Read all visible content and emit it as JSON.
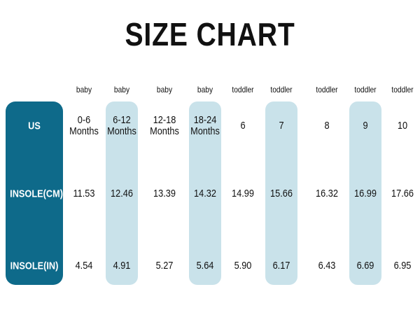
{
  "title": "SIZE CHART",
  "table": {
    "row_headers": [
      "US",
      "INSOLE(CM)",
      "INSOLE(IN)"
    ],
    "columns": [
      {
        "group": "baby",
        "us": "0-6 Months",
        "insole_cm": "11.53",
        "insole_in": "4.54"
      },
      {
        "group": "baby",
        "us": "6-12 Months",
        "insole_cm": "12.46",
        "insole_in": "4.91"
      },
      {
        "group": "baby",
        "us": "12-18 Months",
        "insole_cm": "13.39",
        "insole_in": "5.27"
      },
      {
        "group": "baby",
        "us": "18-24 Months",
        "insole_cm": "14.32",
        "insole_in": "5.64"
      },
      {
        "group": "toddler",
        "us": "6",
        "insole_cm": "14.99",
        "insole_in": "5.90"
      },
      {
        "group": "toddler",
        "us": "7",
        "insole_cm": "15.66",
        "insole_in": "6.17"
      },
      {
        "group": "toddler",
        "us": "8",
        "insole_cm": "16.32",
        "insole_in": "6.43"
      },
      {
        "group": "toddler",
        "us": "9",
        "insole_cm": "16.99",
        "insole_in": "6.69"
      },
      {
        "group": "toddler",
        "us": "10",
        "insole_cm": "17.66",
        "insole_in": "6.95"
      }
    ]
  }
}
